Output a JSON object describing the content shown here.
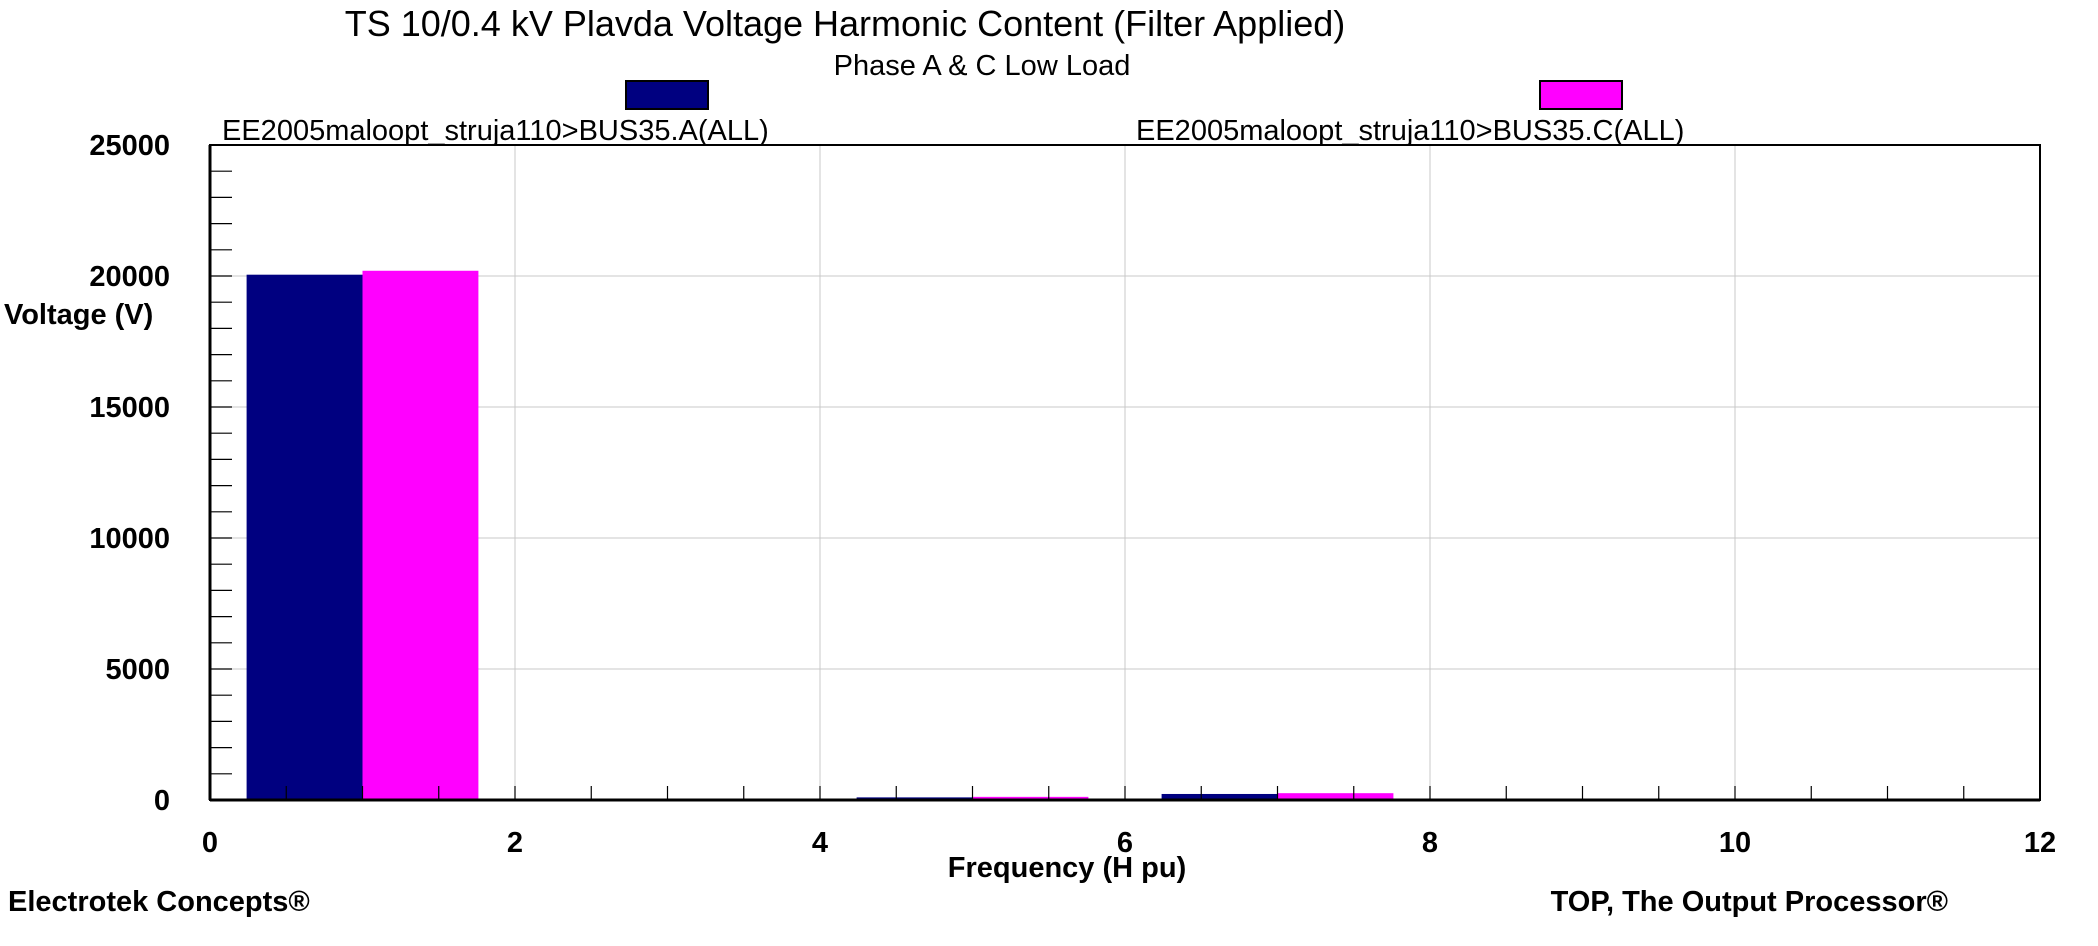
{
  "chart_data": {
    "type": "bar",
    "title": "TS 10/0.4 kV Plavda Voltage Harmonic Content (Filter Applied)",
    "subtitle": "Phase A & C Low Load",
    "xlabel": "Frequency (H pu)",
    "ylabel": "Voltage (V)",
    "xlim": [
      0,
      12
    ],
    "ylim": [
      0,
      25000
    ],
    "x_ticks": [
      "0",
      "2",
      "4",
      "6",
      "8",
      "10",
      "12"
    ],
    "y_ticks": [
      "0",
      "5000",
      "10000",
      "15000",
      "20000",
      "25000"
    ],
    "grid": true,
    "legend_position": "top",
    "categories": [
      1,
      3,
      5,
      7,
      9,
      11
    ],
    "series": [
      {
        "name": "EE2005maloopt_struja110>BUS35.A(ALL)",
        "color": "#000080",
        "values": [
          20050,
          40,
          100,
          230,
          15,
          10
        ]
      },
      {
        "name": "EE2005maloopt_struja110>BUS35.C(ALL)",
        "color": "#ff00ff",
        "values": [
          20200,
          50,
          120,
          260,
          20,
          12
        ]
      }
    ]
  },
  "footer": {
    "left": "Electrotek Concepts®",
    "right": "TOP, The Output Processor®"
  }
}
